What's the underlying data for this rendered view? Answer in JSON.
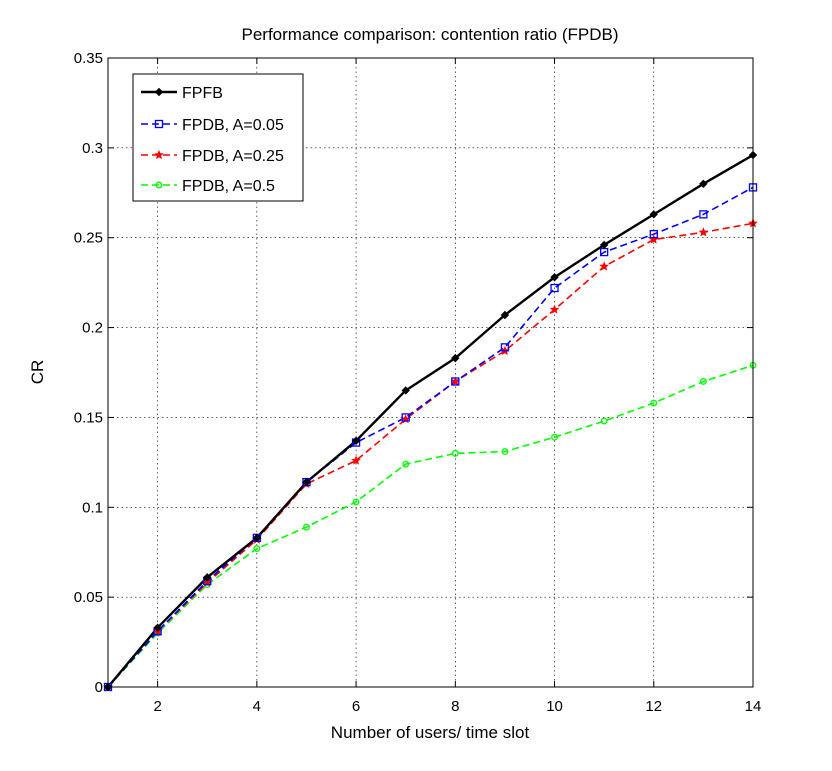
{
  "chart_data": {
    "type": "line",
    "title": "Performance comparison: contention ratio (FPDB)",
    "xlabel": "Number of users/ time slot",
    "ylabel": "CR",
    "xlim": [
      1,
      14
    ],
    "ylim": [
      0,
      0.35
    ],
    "xticks": [
      2,
      4,
      6,
      8,
      10,
      12,
      14
    ],
    "xtick_labels": [
      "2",
      "4",
      "6",
      "8",
      "10",
      "12",
      "14"
    ],
    "yticks": [
      0,
      0.05,
      0.1,
      0.15,
      0.2,
      0.25,
      0.3,
      0.35
    ],
    "ytick_labels": [
      "0",
      "0.05",
      "0.1",
      "0.15",
      "0.2",
      "0.25",
      "0.3",
      "0.35"
    ],
    "grid": true,
    "legend_position": "top-left",
    "x": [
      1,
      2,
      3,
      4,
      5,
      6,
      7,
      8,
      9,
      10,
      11,
      12,
      13,
      14
    ],
    "series": [
      {
        "name": "FPFB",
        "color": "#000000",
        "dash": "solid",
        "marker": "diamond",
        "values": [
          0.0,
          0.033,
          0.061,
          0.083,
          0.114,
          0.137,
          0.165,
          0.183,
          0.207,
          0.228,
          0.246,
          0.263,
          0.28,
          0.296
        ]
      },
      {
        "name": "FPDB, A=0.05",
        "color": "#0000ff",
        "dash": "dash",
        "marker": "square",
        "values": [
          0.0,
          0.031,
          0.059,
          0.083,
          0.114,
          0.136,
          0.15,
          0.17,
          0.189,
          0.222,
          0.242,
          0.252,
          0.263,
          0.278
        ]
      },
      {
        "name": "FPDB, A=0.25",
        "color": "#ff0000",
        "dash": "dash",
        "marker": "star",
        "values": [
          0.0,
          0.031,
          0.058,
          0.082,
          0.113,
          0.126,
          0.149,
          0.17,
          0.187,
          0.21,
          0.234,
          0.249,
          0.253,
          0.258
        ]
      },
      {
        "name": "FPDB, A=0.5",
        "color": "#00ff00",
        "dash": "dash",
        "marker": "circle",
        "values": [
          0.0,
          0.03,
          0.057,
          0.077,
          0.089,
          0.103,
          0.124,
          0.13,
          0.131,
          0.139,
          0.148,
          0.158,
          0.17,
          0.179
        ]
      }
    ]
  }
}
